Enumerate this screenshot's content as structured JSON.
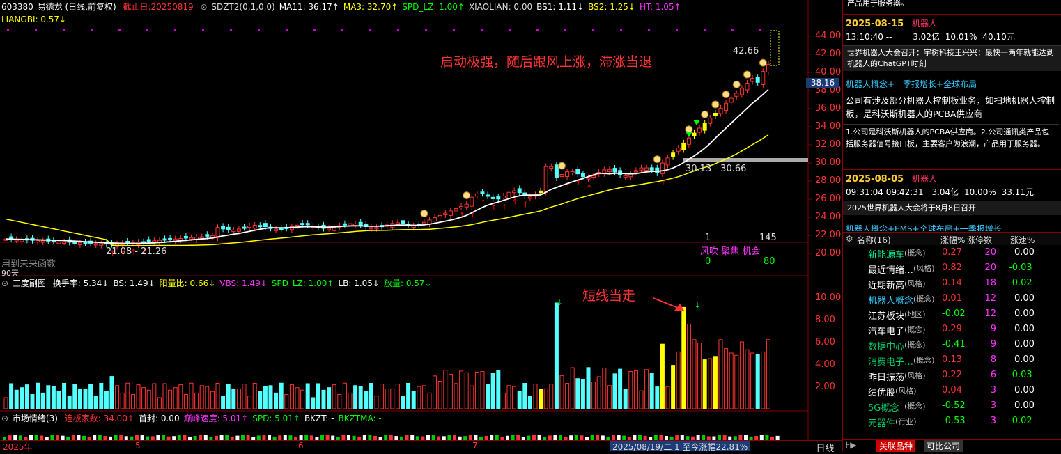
{
  "header": {
    "code": "603380",
    "name": "易德龙",
    "mode": "(日线,前复权)",
    "cutoff": "截止日:20250819",
    "indicators": [
      {
        "text": "SDZT2(0,1,0,0)",
        "color": "#dddddd"
      },
      {
        "text": "MA11: 36.17↑",
        "color": "#ffffff"
      },
      {
        "text": "MA3: 32.70↑",
        "color": "#ffff00"
      },
      {
        "text": "SPD_LZ: 1.00↑",
        "color": "#00ff00"
      },
      {
        "text": "XIAOLIAN: 0.00",
        "color": "#dddddd"
      },
      {
        "text": "BS1: 1.11↓",
        "color": "#ffffff"
      },
      {
        "text": "BS2: 1.25↓",
        "color": "#ffff00"
      },
      {
        "text": "HT: 1.05↑",
        "color": "#ff33ff"
      }
    ],
    "liangbi": "LIANGBI: 0.57↓"
  },
  "annotations": {
    "main_text": "启动极强，随后跟风上涨，滞涨当退",
    "volume_text": "短线当走",
    "high_price": "42.66",
    "range1": "30.13 - 30.66",
    "range2": "21.08 - 21.26",
    "left_text": "用到未来函数",
    "left_days": "90天",
    "current_price": "38.16",
    "mark_1": "1",
    "mark_145": "145",
    "wind_labels": "风吹 聚焦 机会",
    "wind_0": "0",
    "wind_80": "80"
  },
  "price_axis": [
    "44.00",
    "42.00",
    "40.00",
    "38.00",
    "36.00",
    "34.00",
    "32.00",
    "30.00",
    "28.00",
    "26.00",
    "24.00",
    "22.00",
    "20.00"
  ],
  "volume_axis": [
    "10.00",
    "8.00",
    "6.00",
    "4.00",
    "2.00"
  ],
  "sub1": {
    "title": "三度副图",
    "items": [
      {
        "text": "换手率: 5.34↓",
        "color": "#ffffff"
      },
      {
        "text": "BS: 1.49↓",
        "color": "#ffffff"
      },
      {
        "text": "阳量比: 0.66↓",
        "color": "#ffff00"
      },
      {
        "text": "VBS: 1.49↓",
        "color": "#ff33ff"
      },
      {
        "text": "SPD_LZ: 1.00↑",
        "color": "#00ff00"
      },
      {
        "text": "LB: 1.05↓",
        "color": "#ffffff"
      },
      {
        "text": "放量: 0.57↓",
        "color": "#00ff00"
      }
    ]
  },
  "sub2": {
    "title": "市场情绪(3)",
    "items": [
      {
        "text": "连板家数: 34.00↑",
        "color": "#ff3333"
      },
      {
        "text": "首封: 0.00",
        "color": "#ffffff"
      },
      {
        "text": "巅峰速度: 5.01↑",
        "color": "#ff33ff"
      },
      {
        "text": "SPD: 5.01↑",
        "color": "#00ff00"
      },
      {
        "text": "BKZT: -",
        "color": "#ffffff"
      },
      {
        "text": "BKZTMA: -",
        "color": "#00ff00"
      }
    ]
  },
  "time_axis": {
    "year": "2025年",
    "m5": "5",
    "m6": "6",
    "m7": "7",
    "status": "2025/08/19/二 1 至今涨幅22.81%",
    "period": "日线"
  },
  "news": [
    {
      "date": "2025-08-15",
      "tag": "机器人",
      "time": "13:10:40 --",
      "amount": "3.02亿",
      "pct": "10.01%",
      "price": "40.10元",
      "headline": "世界机器人大会召开：宇树科技王兴兴：最快一两年就能达到机器人的ChatGPT时刻"
    },
    {
      "date": "2025-08-05",
      "tag": "机器人",
      "time": "09:31:04 09:42:31",
      "amount": "3.04亿",
      "pct": "10.00%",
      "price": "33.11元",
      "headline": "2025世界机器人大会将于8月8日召开"
    }
  ],
  "news_top_fragment": "产品用于服务器。",
  "concept1": "机器人概念+一季报增长+全球布局",
  "desc1": "公司有涉及部分机器人控制板业务，如扫地机器人控制板，是科沃斯机器人的PCBA供应商",
  "desc2": "1.公司是科沃斯机器人的PCBA供应商。2.公司通讯类产品包括服务器信号接口板，主要客户为浪潮，产品用于服务器。",
  "concept2": "机器人概念+EMS+全球布局+一季报增长",
  "sectors": {
    "header": {
      "name": "名称(16)",
      "chg": "涨幅%",
      "cnt": "涨停数",
      "speed": "涨速%"
    },
    "rows": [
      {
        "name": "新能源车",
        "cat": "(概念)",
        "chg": "0.27",
        "cnt": "20",
        "speed": "0.00",
        "nc": "#00ff99",
        "cc": "#ff3333"
      },
      {
        "name": "最近情绪…",
        "cat": "(风格)",
        "chg": "0.82",
        "cnt": "20",
        "speed": "-0.03",
        "nc": "#ffffff",
        "cc": "#ff3333"
      },
      {
        "name": "近期新高",
        "cat": "(风格)",
        "chg": "0.14",
        "cnt": "18",
        "speed": "-0.02",
        "nc": "#ffffff",
        "cc": "#ff3333"
      },
      {
        "name": "机器人概念",
        "cat": "(概念)",
        "chg": "0.01",
        "cnt": "12",
        "speed": "0.00",
        "nc": "#33ccff",
        "cc": "#ff3333"
      },
      {
        "name": "江苏板块",
        "cat": "(地区)",
        "chg": "-0.02",
        "cnt": "12",
        "speed": "0.00",
        "nc": "#ffffff",
        "cc": "#00ff00"
      },
      {
        "name": "汽车电子",
        "cat": "(概念)",
        "chg": "0.29",
        "cnt": "9",
        "speed": "0.00",
        "nc": "#ffffff",
        "cc": "#ff3333"
      },
      {
        "name": "数据中心",
        "cat": "(概念)",
        "chg": "-0.41",
        "cnt": "9",
        "speed": "0.00",
        "nc": "#00cc66",
        "cc": "#00ff00"
      },
      {
        "name": "消费电子…",
        "cat": "(概念)",
        "chg": "0.13",
        "cnt": "8",
        "speed": "0.00",
        "nc": "#00cc66",
        "cc": "#ff3333"
      },
      {
        "name": "昨日振荡",
        "cat": "(风格)",
        "chg": "0.22",
        "cnt": "6",
        "speed": "-0.03",
        "nc": "#ffffff",
        "cc": "#ff3333"
      },
      {
        "name": "绩优股",
        "cat": "(风格)",
        "chg": "0.04",
        "cnt": "3",
        "speed": "0.00",
        "nc": "#ffffff",
        "cc": "#ff3333"
      },
      {
        "name": "5G概念",
        "cat": "(概念)",
        "chg": "-0.52",
        "cnt": "3",
        "speed": "0.00",
        "nc": "#00cc66",
        "cc": "#00ff00"
      },
      {
        "name": "元器件",
        "cat": "(行业)",
        "chg": "-0.53",
        "cnt": "3",
        "speed": "-0.02",
        "nc": "#00cc66",
        "cc": "#00ff00"
      }
    ]
  },
  "bottom_tabs": {
    "related": "关联品种",
    "comparable": "可比公司"
  },
  "colors": {
    "up": "#ff3333",
    "down": "#54ffff",
    "limit": "#ffff00",
    "ma_white": "#ffffff",
    "ma_yellow": "#ffff00",
    "grid_red": "#800000"
  }
}
